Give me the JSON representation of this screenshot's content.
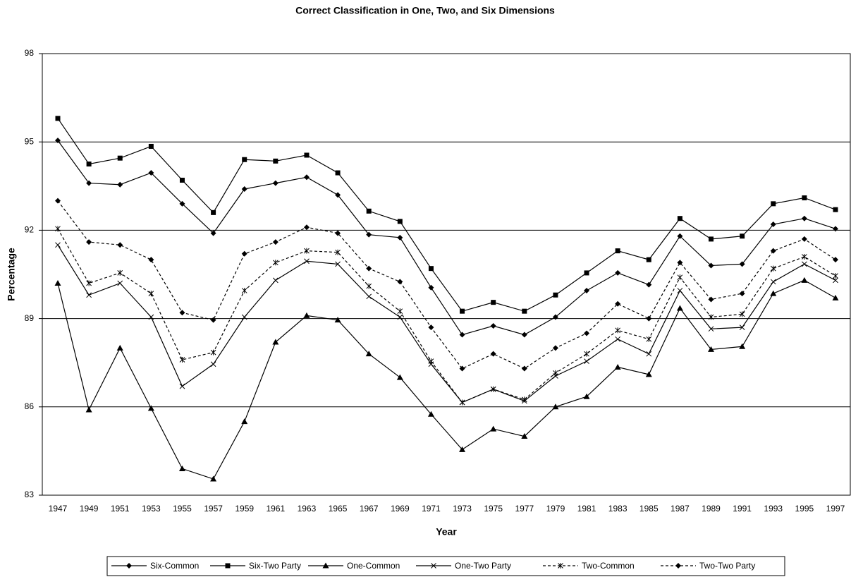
{
  "chart_data": {
    "type": "line",
    "title": "Correct Classification in One, Two, and Six Dimensions",
    "x_label": "Year",
    "y_label": "Percentage",
    "categories": [
      "1947",
      "1949",
      "1951",
      "1953",
      "1955",
      "1957",
      "1959",
      "1961",
      "1963",
      "1965",
      "1967",
      "1969",
      "1971",
      "1973",
      "1975",
      "1977",
      "1979",
      "1981",
      "1983",
      "1985",
      "1987",
      "1989",
      "1991",
      "1993",
      "1995",
      "1997"
    ],
    "ylim": [
      83,
      98
    ],
    "yticks": [
      83,
      86,
      89,
      92,
      95,
      98
    ],
    "grid": true,
    "legend": "bottom",
    "series": [
      {
        "name": "Six-Common",
        "color": "#000000",
        "marker": "diamond",
        "dashed": false,
        "values": [
          95.05,
          93.6,
          93.55,
          93.95,
          92.9,
          91.9,
          93.4,
          93.6,
          93.8,
          93.2,
          91.85,
          91.75,
          90.05,
          88.45,
          88.75,
          88.45,
          89.05,
          89.95,
          90.55,
          90.15,
          91.8,
          90.8,
          90.85,
          92.2,
          92.4,
          92.05
        ]
      },
      {
        "name": "Six-Two Party",
        "color": "#000000",
        "marker": "square",
        "dashed": false,
        "values": [
          95.8,
          94.25,
          94.45,
          94.85,
          93.7,
          92.6,
          94.4,
          94.35,
          94.55,
          93.95,
          92.65,
          92.3,
          90.7,
          89.25,
          89.55,
          89.25,
          89.8,
          90.55,
          91.3,
          91.0,
          92.4,
          91.7,
          91.8,
          92.9,
          93.1,
          92.7
        ]
      },
      {
        "name": "One-Common",
        "color": "#000000",
        "marker": "triangle",
        "dashed": false,
        "values": [
          90.2,
          85.9,
          88.0,
          85.95,
          83.9,
          83.55,
          85.5,
          88.2,
          89.1,
          88.95,
          87.8,
          87.0,
          85.75,
          84.55,
          85.25,
          85.0,
          86.0,
          86.35,
          87.35,
          87.1,
          89.35,
          87.95,
          88.05,
          89.85,
          90.3,
          89.7
        ]
      },
      {
        "name": "One-Two Party",
        "color": "#000000",
        "marker": "x",
        "dashed": false,
        "values": [
          91.5,
          89.8,
          90.2,
          89.05,
          86.7,
          87.45,
          89.05,
          90.3,
          90.95,
          90.85,
          89.75,
          89.05,
          87.45,
          86.15,
          86.6,
          86.2,
          87.05,
          87.55,
          88.3,
          87.8,
          89.95,
          88.65,
          88.7,
          90.25,
          90.85,
          90.3
        ]
      },
      {
        "name": "Two-Common",
        "color": "#000000",
        "marker": "asterisk",
        "dashed": true,
        "values": [
          92.05,
          90.2,
          90.55,
          89.85,
          87.6,
          87.85,
          89.95,
          90.9,
          91.3,
          91.25,
          90.1,
          89.25,
          87.55,
          86.15,
          86.6,
          86.25,
          87.15,
          87.8,
          88.6,
          88.3,
          90.4,
          89.05,
          89.15,
          90.7,
          91.1,
          90.45
        ]
      },
      {
        "name": "Two-Two Party",
        "color": "#000000",
        "marker": "diamond",
        "dashed": true,
        "values": [
          93.0,
          91.6,
          91.5,
          91.0,
          89.2,
          88.95,
          91.2,
          91.6,
          92.1,
          91.9,
          90.7,
          90.25,
          88.7,
          87.3,
          87.8,
          87.3,
          88.0,
          88.5,
          89.5,
          89.0,
          90.9,
          89.65,
          89.85,
          91.3,
          91.7,
          91.0
        ]
      }
    ]
  }
}
